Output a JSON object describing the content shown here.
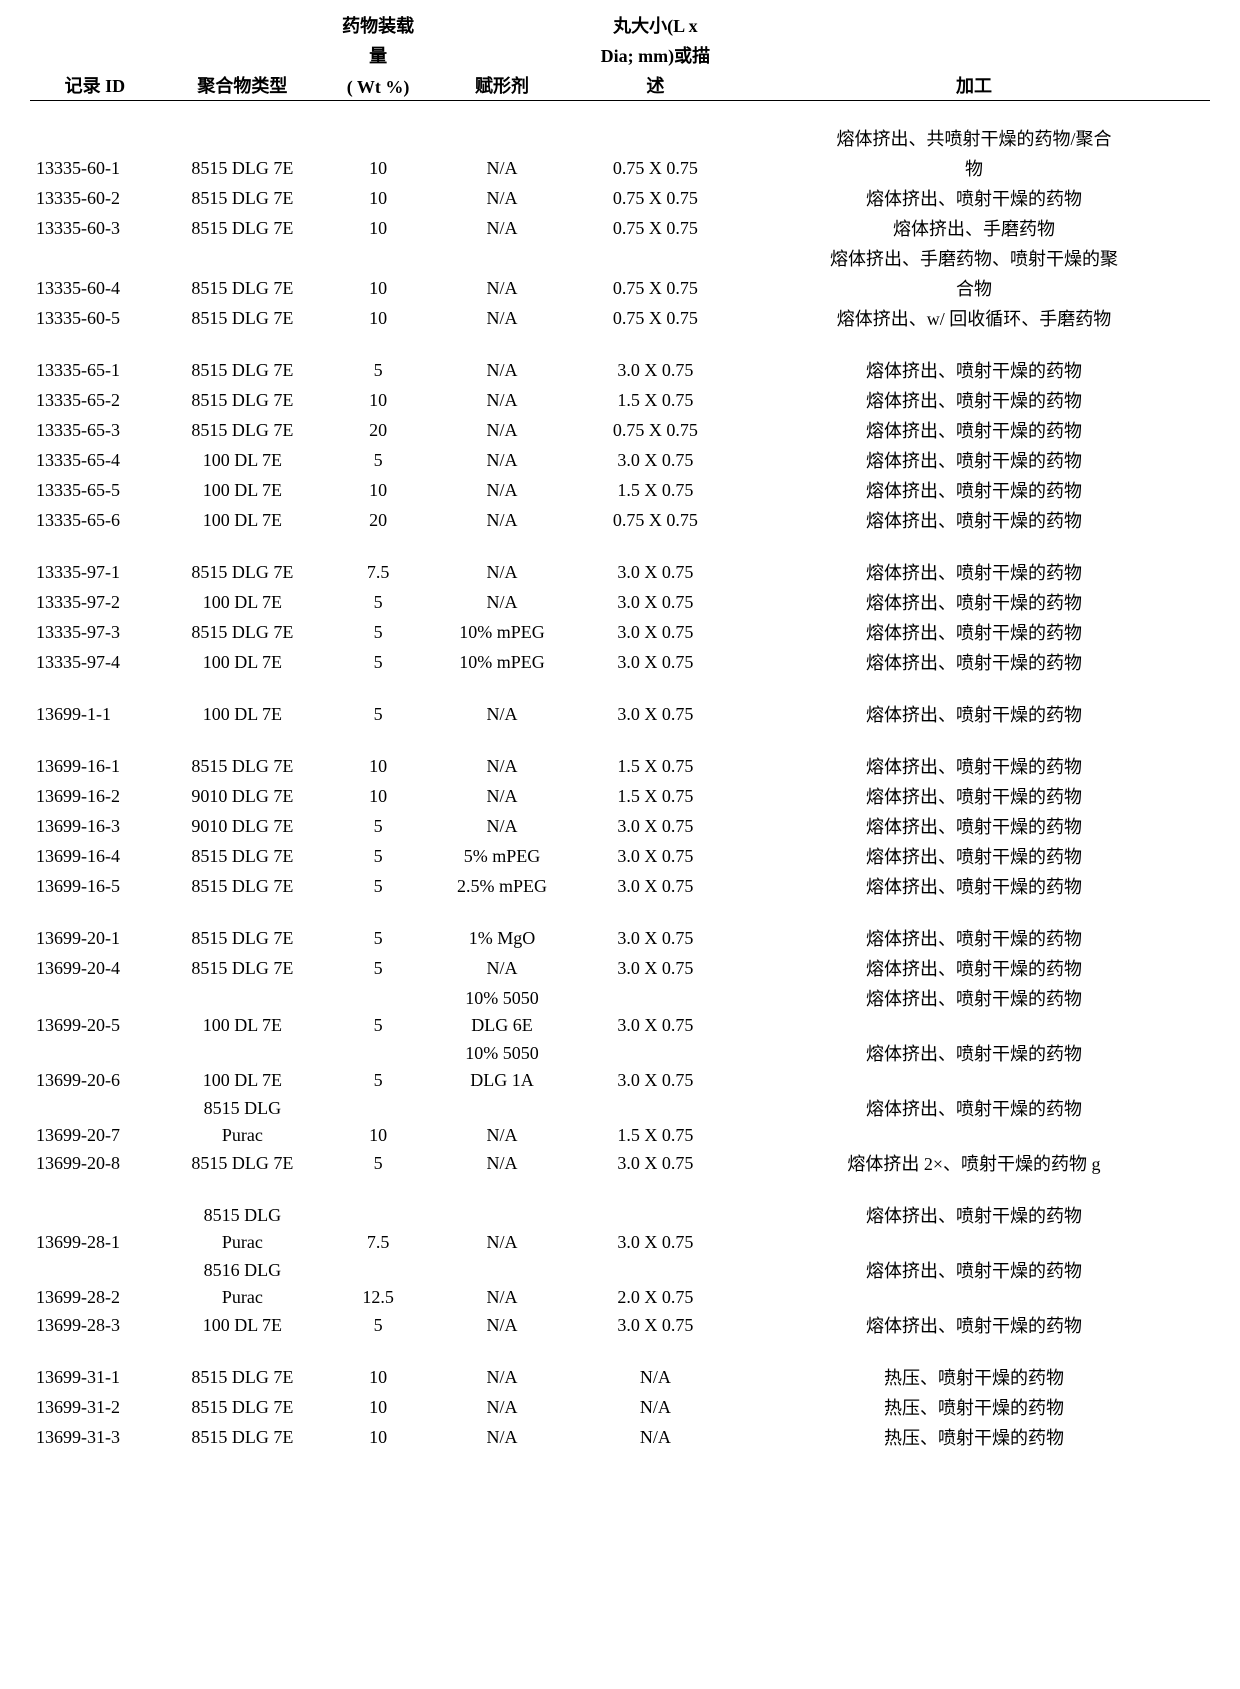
{
  "headers": {
    "c1": "记录 ID",
    "c2": "聚合物类型",
    "c3_l1": "药物装载",
    "c3_l2": "量",
    "c3_l3": "( Wt %)",
    "c4": "赋形剂",
    "c5_l1": "丸大小(L x",
    "c5_l2": "Dia; mm)或描",
    "c5_l3": "述",
    "c6": "加工"
  },
  "rows": [
    {
      "type": "data",
      "id": "13335-60-1",
      "poly": "8515 DLG 7E",
      "wt": "10",
      "exc": "N/A",
      "size": "0.75 X 0.75",
      "proc_l1": "熔体挤出、共喷射干燥的药物/聚合",
      "proc_l2": "物"
    },
    {
      "type": "data",
      "id": "13335-60-2",
      "poly": "8515 DLG 7E",
      "wt": "10",
      "exc": "N/A",
      "size": "0.75 X 0.75",
      "proc": "熔体挤出、喷射干燥的药物"
    },
    {
      "type": "data",
      "id": "13335-60-3",
      "poly": "8515 DLG 7E",
      "wt": "10",
      "exc": "N/A",
      "size": "0.75 X 0.75",
      "proc": "熔体挤出、手磨药物"
    },
    {
      "type": "data",
      "id": "13335-60-4",
      "poly": "8515 DLG 7E",
      "wt": "10",
      "exc": "N/A",
      "size": "0.75 X 0.75",
      "proc_l1": "熔体挤出、手磨药物、喷射干燥的聚",
      "proc_l2": "合物"
    },
    {
      "type": "data",
      "id": "13335-60-5",
      "poly": "8515 DLG 7E",
      "wt": "10",
      "exc": "N/A",
      "size": "0.75 X 0.75",
      "proc": "熔体挤出、w/ 回收循环、手磨药物"
    },
    {
      "type": "gap"
    },
    {
      "type": "data",
      "id": "13335-65-1",
      "poly": "8515 DLG 7E",
      "wt": "5",
      "exc": "N/A",
      "size": "3.0 X 0.75",
      "proc": "熔体挤出、喷射干燥的药物"
    },
    {
      "type": "data",
      "id": "13335-65-2",
      "poly": "8515 DLG 7E",
      "wt": "10",
      "exc": "N/A",
      "size": "1.5 X 0.75",
      "proc": "熔体挤出、喷射干燥的药物"
    },
    {
      "type": "data",
      "id": "13335-65-3",
      "poly": "8515 DLG 7E",
      "wt": "20",
      "exc": "N/A",
      "size": "0.75 X 0.75",
      "proc": "熔体挤出、喷射干燥的药物"
    },
    {
      "type": "data",
      "id": "13335-65-4",
      "poly": "100 DL 7E",
      "wt": "5",
      "exc": "N/A",
      "size": "3.0 X 0.75",
      "proc": "熔体挤出、喷射干燥的药物"
    },
    {
      "type": "data",
      "id": "13335-65-5",
      "poly": "100 DL 7E",
      "wt": "10",
      "exc": "N/A",
      "size": "1.5 X 0.75",
      "proc": "熔体挤出、喷射干燥的药物"
    },
    {
      "type": "data",
      "id": "13335-65-6",
      "poly": "100 DL 7E",
      "wt": "20",
      "exc": "N/A",
      "size": "0.75 X 0.75",
      "proc": "熔体挤出、喷射干燥的药物"
    },
    {
      "type": "gap"
    },
    {
      "type": "data",
      "id": "13335-97-1",
      "poly": "8515 DLG 7E",
      "wt": "7.5",
      "exc": "N/A",
      "size": "3.0 X 0.75",
      "proc": "熔体挤出、喷射干燥的药物"
    },
    {
      "type": "data",
      "id": "13335-97-2",
      "poly": "100 DL 7E",
      "wt": "5",
      "exc": "N/A",
      "size": "3.0 X 0.75",
      "proc": "熔体挤出、喷射干燥的药物"
    },
    {
      "type": "data",
      "id": "13335-97-3",
      "poly": "8515 DLG 7E",
      "wt": "5",
      "exc": "10% mPEG",
      "size": "3.0 X 0.75",
      "proc": "熔体挤出、喷射干燥的药物"
    },
    {
      "type": "data",
      "id": "13335-97-4",
      "poly": "100 DL 7E",
      "wt": "5",
      "exc": "10% mPEG",
      "size": "3.0 X 0.75",
      "proc": "熔体挤出、喷射干燥的药物"
    },
    {
      "type": "gap"
    },
    {
      "type": "data",
      "id": "13699-1-1",
      "poly": "100 DL 7E",
      "wt": "5",
      "exc": "N/A",
      "size": "3.0 X 0.75",
      "proc": "熔体挤出、喷射干燥的药物"
    },
    {
      "type": "gap"
    },
    {
      "type": "data",
      "id": "13699-16-1",
      "poly": "8515 DLG 7E",
      "wt": "10",
      "exc": "N/A",
      "size": "1.5 X 0.75",
      "proc": "熔体挤出、喷射干燥的药物"
    },
    {
      "type": "data",
      "id": "13699-16-2",
      "poly": "9010 DLG 7E",
      "wt": "10",
      "exc": "N/A",
      "size": "1.5 X 0.75",
      "proc": "熔体挤出、喷射干燥的药物"
    },
    {
      "type": "data",
      "id": "13699-16-3",
      "poly": "9010 DLG 7E",
      "wt": "5",
      "exc": "N/A",
      "size": "3.0 X 0.75",
      "proc": "熔体挤出、喷射干燥的药物"
    },
    {
      "type": "data",
      "id": "13699-16-4",
      "poly": "8515 DLG 7E",
      "wt": "5",
      "exc": "5% mPEG",
      "size": "3.0 X 0.75",
      "proc": "熔体挤出、喷射干燥的药物"
    },
    {
      "type": "data",
      "id": "13699-16-5",
      "poly": "8515 DLG 7E",
      "wt": "5",
      "exc": "2.5% mPEG",
      "size": "3.0 X 0.75",
      "proc": "熔体挤出、喷射干燥的药物"
    },
    {
      "type": "gap"
    },
    {
      "type": "data",
      "id": "13699-20-1",
      "poly": "8515 DLG 7E",
      "wt": "5",
      "exc": "1% MgO",
      "size": "3.0 X 0.75",
      "proc": "熔体挤出、喷射干燥的药物"
    },
    {
      "type": "data",
      "id": "13699-20-4",
      "poly": "8515 DLG 7E",
      "wt": "5",
      "exc": "N/A",
      "size": "3.0 X 0.75",
      "proc": "熔体挤出、喷射干燥的药物"
    },
    {
      "type": "data",
      "id": "13699-20-5",
      "poly": "100 DL 7E",
      "wt": "5",
      "exc_l1": "10% 5050",
      "exc_l2": "DLG 6E",
      "size": "3.0 X 0.75",
      "proc": "熔体挤出、喷射干燥的药物"
    },
    {
      "type": "data",
      "id": "13699-20-6",
      "poly": "100 DL 7E",
      "wt": "5",
      "exc_l1": "10% 5050",
      "exc_l2": "DLG 1A",
      "size": "3.0 X 0.75",
      "proc": "熔体挤出、喷射干燥的药物"
    },
    {
      "type": "data",
      "id": "13699-20-7",
      "poly_l1": "8515 DLG",
      "poly_l2": "Purac",
      "wt": "10",
      "exc": "N/A",
      "size": "1.5 X 0.75",
      "proc": "熔体挤出、喷射干燥的药物"
    },
    {
      "type": "data",
      "id": "13699-20-8",
      "poly": "8515 DLG 7E",
      "wt": "5",
      "exc": "N/A",
      "size": "3.0 X 0.75",
      "proc": "熔体挤出 2×、喷射干燥的药物 g"
    },
    {
      "type": "gap"
    },
    {
      "type": "data",
      "id": "13699-28-1",
      "poly_l1": "8515 DLG",
      "poly_l2": "Purac",
      "wt": "7.5",
      "exc": "N/A",
      "size": "3.0 X 0.75",
      "proc": "熔体挤出、喷射干燥的药物"
    },
    {
      "type": "data",
      "id": "13699-28-2",
      "poly_l1": "8516 DLG",
      "poly_l2": "Purac",
      "wt": "12.5",
      "exc": "N/A",
      "size": "2.0 X 0.75",
      "proc": "熔体挤出、喷射干燥的药物"
    },
    {
      "type": "data",
      "id": "13699-28-3",
      "poly": "100 DL 7E",
      "wt": "5",
      "exc": "N/A",
      "size": "3.0 X 0.75",
      "proc": "熔体挤出、喷射干燥的药物"
    },
    {
      "type": "gap"
    },
    {
      "type": "data",
      "id": "13699-31-1",
      "poly": "8515 DLG 7E",
      "wt": "10",
      "exc": "N/A",
      "size": "N/A",
      "proc": "热压、喷射干燥的药物"
    },
    {
      "type": "data",
      "id": "13699-31-2",
      "poly": "8515 DLG 7E",
      "wt": "10",
      "exc": "N/A",
      "size": "N/A",
      "proc": "热压、喷射干燥的药物"
    },
    {
      "type": "data",
      "id": "13699-31-3",
      "poly": "8515 DLG 7E",
      "wt": "10",
      "exc": "N/A",
      "size": "N/A",
      "proc": "热压、喷射干燥的药物"
    }
  ]
}
